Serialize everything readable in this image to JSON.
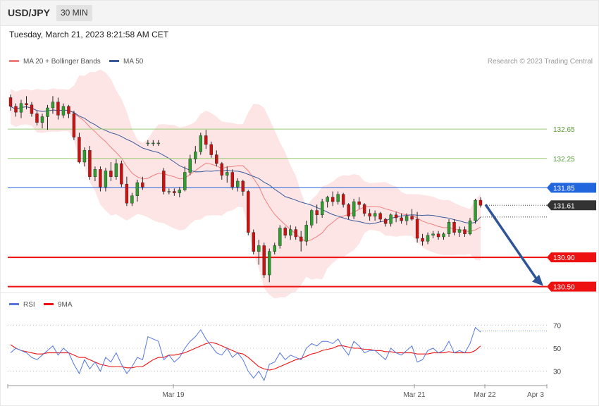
{
  "header": {
    "pair": "USD/JPY",
    "timeframe": "30 MIN"
  },
  "timestamp": "Tuesday, March 21, 2023 8:21:58 AM CET",
  "legend": {
    "ma20": "MA 20 + Bollinger Bands",
    "ma50": "MA 50",
    "credit": "Research © 2023 Trading Central"
  },
  "rsi_legend": {
    "rsi": "RSI",
    "ma9": "9MA"
  },
  "colors": {
    "up": "#2e9e2e",
    "down": "#cc1111",
    "ma20": "#f08080",
    "ma50": "#3a5a9a",
    "band": "#fde0e0",
    "support": "#ee1111",
    "resistance": "#99cc77",
    "pivot": "#2266dd",
    "rsi": "#5577dd",
    "arrow": "#2f5597"
  },
  "chart_data": [
    {
      "type": "candlestick",
      "title": "USD/JPY",
      "ylim": [
        130.42,
        133.45
      ],
      "x_ticks": [
        "Mar 19",
        "Mar 21",
        "Mar 22",
        "Apr 3"
      ],
      "levels": [
        {
          "value": 132.65,
          "label": "132.65",
          "kind": "resistance"
        },
        {
          "value": 132.25,
          "label": "132.25",
          "kind": "resistance"
        },
        {
          "value": 131.85,
          "label": "131.85",
          "kind": "pivot"
        },
        {
          "value": 131.61,
          "label": "131.61",
          "kind": "last"
        },
        {
          "value": 130.9,
          "label": "130.90",
          "kind": "support"
        },
        {
          "value": 130.5,
          "label": "130.50",
          "kind": "support"
        }
      ],
      "projection": {
        "from": 131.62,
        "to": 130.5
      },
      "ma50_end": 131.45,
      "candles": [
        [
          133.08,
          133.12,
          132.9,
          132.96
        ],
        [
          132.96,
          133.0,
          132.82,
          132.88
        ],
        [
          132.88,
          133.05,
          132.8,
          133.0
        ],
        [
          133.0,
          133.1,
          132.92,
          132.98
        ],
        [
          132.98,
          133.02,
          132.82,
          132.86
        ],
        [
          132.86,
          132.9,
          132.7,
          132.74
        ],
        [
          132.74,
          132.86,
          132.66,
          132.82
        ],
        [
          132.82,
          132.98,
          132.64,
          132.94
        ],
        [
          132.94,
          133.1,
          132.86,
          133.02
        ],
        [
          133.02,
          133.08,
          132.78,
          132.84
        ],
        [
          132.84,
          133.0,
          132.8,
          132.96
        ],
        [
          132.96,
          132.98,
          132.8,
          132.86
        ],
        [
          132.86,
          132.9,
          132.5,
          132.54
        ],
        [
          132.54,
          132.6,
          132.18,
          132.2
        ],
        [
          132.2,
          132.4,
          132.14,
          132.36
        ],
        [
          132.36,
          132.42,
          131.96,
          132.0
        ],
        [
          132.0,
          132.14,
          131.94,
          132.1
        ],
        [
          132.1,
          132.14,
          131.8,
          131.86
        ],
        [
          131.86,
          132.12,
          131.8,
          132.08
        ],
        [
          132.08,
          132.2,
          131.94,
          132.0
        ],
        [
          132.0,
          132.24,
          131.96,
          132.18
        ],
        [
          132.18,
          132.22,
          131.86,
          131.9
        ],
        [
          131.9,
          132.0,
          131.6,
          131.64
        ],
        [
          131.64,
          131.78,
          131.6,
          131.74
        ],
        [
          131.74,
          131.96,
          131.66,
          131.92
        ],
        [
          131.92,
          132.0,
          131.82,
          131.86
        ],
        [
          132.46,
          132.5,
          132.42,
          132.46
        ],
        [
          132.46,
          132.5,
          132.42,
          132.46
        ],
        [
          132.46,
          132.5,
          132.42,
          132.46
        ],
        [
          132.08,
          132.12,
          131.76,
          131.8
        ],
        [
          131.8,
          131.84,
          131.76,
          131.8
        ],
        [
          131.8,
          131.84,
          131.74,
          131.78
        ],
        [
          131.78,
          131.86,
          131.72,
          131.82
        ],
        [
          131.82,
          132.14,
          131.8,
          132.06
        ],
        [
          132.06,
          132.3,
          132.02,
          132.24
        ],
        [
          132.24,
          132.42,
          132.18,
          132.34
        ],
        [
          132.34,
          132.6,
          132.3,
          132.56
        ],
        [
          132.56,
          132.64,
          132.38,
          132.44
        ],
        [
          132.44,
          132.48,
          132.26,
          132.3
        ],
        [
          132.3,
          132.36,
          132.14,
          132.18
        ],
        [
          132.18,
          132.2,
          131.96,
          132.02
        ],
        [
          132.02,
          132.14,
          131.92,
          132.06
        ],
        [
          132.06,
          132.1,
          131.82,
          131.86
        ],
        [
          131.86,
          131.98,
          131.8,
          131.94
        ],
        [
          131.94,
          131.96,
          131.74,
          131.8
        ],
        [
          131.8,
          131.82,
          131.2,
          131.24
        ],
        [
          131.24,
          131.28,
          130.94,
          130.98
        ],
        [
          130.98,
          131.14,
          130.8,
          131.06
        ],
        [
          131.06,
          131.1,
          130.62,
          130.66
        ],
        [
          130.66,
          131.02,
          130.56,
          130.98
        ],
        [
          130.98,
          131.1,
          130.94,
          131.06
        ],
        [
          131.06,
          131.34,
          131.02,
          131.3
        ],
        [
          131.3,
          131.32,
          131.16,
          131.2
        ],
        [
          131.2,
          131.34,
          131.14,
          131.28
        ],
        [
          131.28,
          131.32,
          131.14,
          131.18
        ],
        [
          131.18,
          131.26,
          130.98,
          131.12
        ],
        [
          131.12,
          131.4,
          131.06,
          131.34
        ],
        [
          131.34,
          131.56,
          131.3,
          131.54
        ],
        [
          131.54,
          131.62,
          131.36,
          131.48
        ],
        [
          131.48,
          131.7,
          131.44,
          131.66
        ],
        [
          131.66,
          131.74,
          131.58,
          131.72
        ],
        [
          131.72,
          131.8,
          131.6,
          131.66
        ],
        [
          131.66,
          131.8,
          131.62,
          131.76
        ],
        [
          131.76,
          131.78,
          131.58,
          131.62
        ],
        [
          131.62,
          131.64,
          131.42,
          131.46
        ],
        [
          131.46,
          131.7,
          131.42,
          131.66
        ],
        [
          131.66,
          131.72,
          131.56,
          131.62
        ],
        [
          131.62,
          131.64,
          131.46,
          131.5
        ],
        [
          131.5,
          131.56,
          131.4,
          131.46
        ],
        [
          131.46,
          131.54,
          131.4,
          131.5
        ],
        [
          131.5,
          131.52,
          131.38,
          131.42
        ],
        [
          131.42,
          131.44,
          131.32,
          131.36
        ],
        [
          131.36,
          131.5,
          131.32,
          131.48
        ],
        [
          131.48,
          131.52,
          131.38,
          131.44
        ],
        [
          131.44,
          131.5,
          131.36,
          131.4
        ],
        [
          131.4,
          131.5,
          131.34,
          131.46
        ],
        [
          131.46,
          131.56,
          131.4,
          131.42
        ],
        [
          131.42,
          131.52,
          131.1,
          131.16
        ],
        [
          131.16,
          131.22,
          131.06,
          131.12
        ],
        [
          131.12,
          131.24,
          131.08,
          131.2
        ],
        [
          131.2,
          131.26,
          131.16,
          131.22
        ],
        [
          131.22,
          131.26,
          131.14,
          131.18
        ],
        [
          131.18,
          131.24,
          131.14,
          131.22
        ],
        [
          131.22,
          131.42,
          131.18,
          131.38
        ],
        [
          131.38,
          131.42,
          131.2,
          131.24
        ],
        [
          131.24,
          131.32,
          131.18,
          131.28
        ],
        [
          131.28,
          131.32,
          131.18,
          131.22
        ],
        [
          131.22,
          131.44,
          131.2,
          131.4
        ],
        [
          131.4,
          131.7,
          131.36,
          131.68
        ],
        [
          131.68,
          131.72,
          131.58,
          131.61
        ]
      ]
    },
    {
      "type": "line",
      "title": "RSI",
      "ylim": [
        20,
        80
      ],
      "y_ticks": [
        70,
        50,
        30
      ],
      "series": [
        {
          "name": "RSI",
          "values": [
            46,
            50,
            48,
            46,
            42,
            40,
            44,
            48,
            52,
            44,
            50,
            46,
            36,
            28,
            40,
            32,
            38,
            30,
            42,
            38,
            46,
            36,
            28,
            34,
            42,
            40,
            60,
            58,
            56,
            40,
            44,
            38,
            42,
            50,
            56,
            60,
            66,
            58,
            52,
            46,
            44,
            50,
            42,
            46,
            40,
            30,
            24,
            30,
            22,
            36,
            38,
            46,
            40,
            44,
            42,
            40,
            50,
            54,
            52,
            56,
            56,
            54,
            58,
            50,
            44,
            56,
            52,
            46,
            48,
            48,
            44,
            40,
            50,
            46,
            44,
            48,
            52,
            38,
            40,
            48,
            50,
            46,
            48,
            56,
            46,
            48,
            46,
            54,
            68,
            64
          ]
        },
        {
          "name": "9MA",
          "values": [
            53,
            50,
            48,
            47,
            46,
            45,
            45,
            46,
            46,
            46,
            46,
            46,
            44,
            42,
            42,
            40,
            38,
            36,
            35,
            34,
            34,
            34,
            33,
            33,
            34,
            34,
            37,
            40,
            42,
            42,
            44,
            44,
            45,
            46,
            48,
            50,
            52,
            54,
            55,
            54,
            52,
            50,
            48,
            46,
            45,
            42,
            38,
            34,
            32,
            31,
            32,
            34,
            36,
            38,
            40,
            41,
            43,
            45,
            46,
            48,
            49,
            50,
            52,
            52,
            51,
            50,
            50,
            49,
            49,
            48,
            48,
            47,
            47,
            46,
            46,
            46,
            46,
            45,
            45,
            45,
            46,
            46,
            46,
            47,
            46,
            46,
            46,
            46,
            48,
            52
          ]
        }
      ]
    }
  ]
}
